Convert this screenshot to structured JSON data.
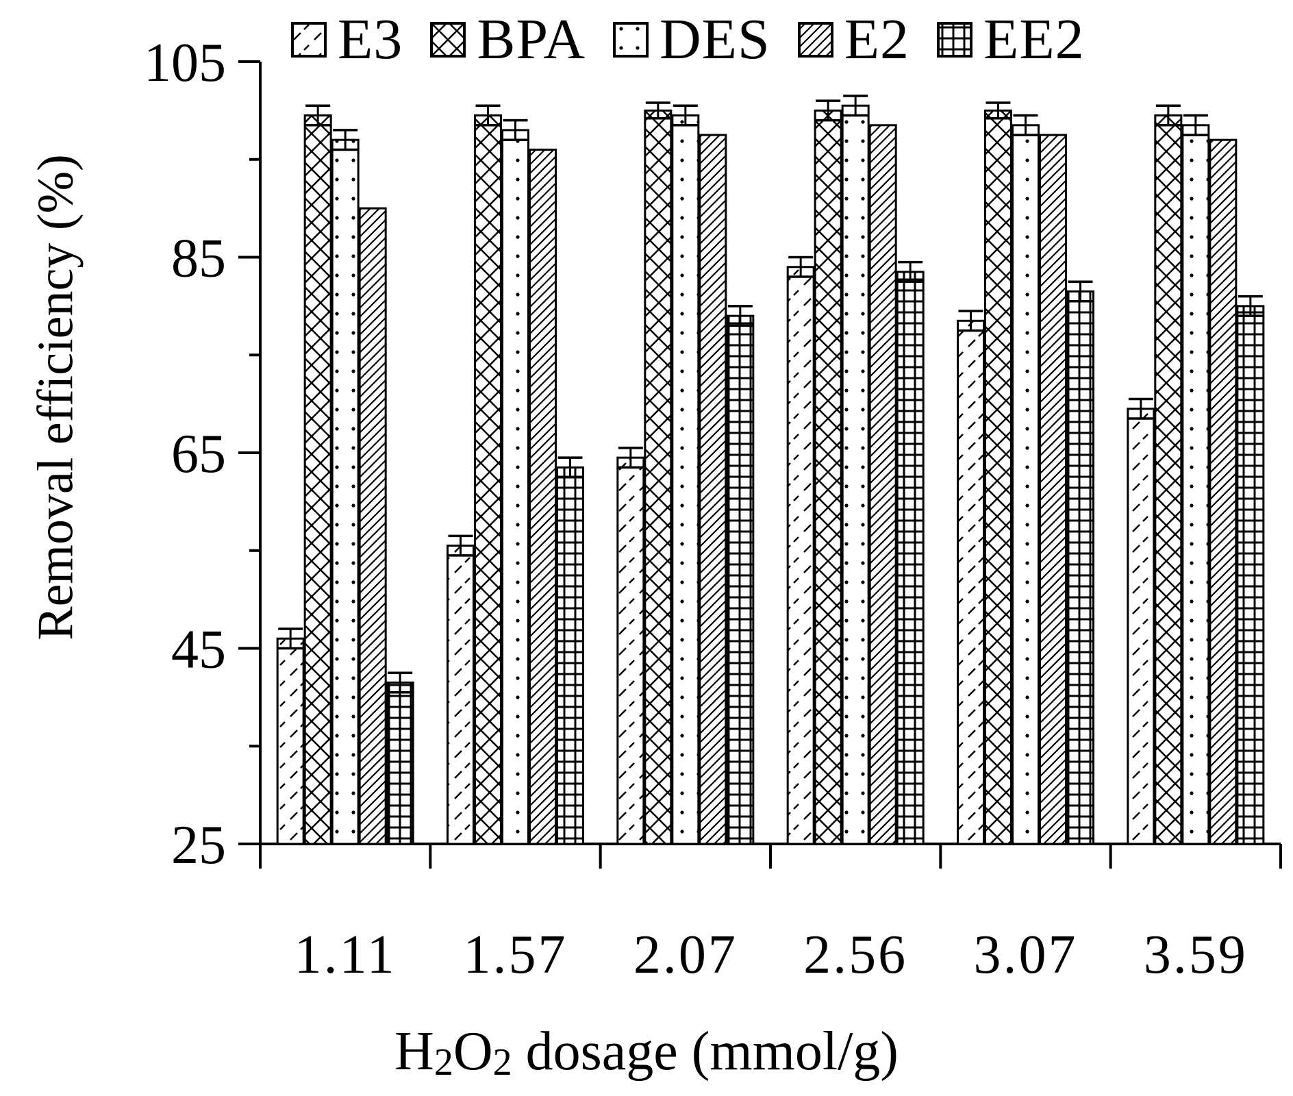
{
  "chart_data": {
    "type": "bar",
    "xlabel_parts": {
      "prefix": "H",
      "sub1": "2",
      "mid": "O",
      "sub2": "2",
      "suffix": " dosage (mmol/g)"
    },
    "ylabel": "Removal efficiency (%)",
    "ylim": [
      25,
      105
    ],
    "yticks": [
      "25",
      "45",
      "65",
      "85",
      "105"
    ],
    "categories": [
      "1.11",
      "1.57",
      "2.07",
      "2.56",
      "3.07",
      "3.59"
    ],
    "series": [
      {
        "name": "E3",
        "pattern": "slash-dash",
        "values": [
          46,
          55.5,
          64.5,
          84,
          78.5,
          69.5
        ],
        "errors": [
          1,
          1,
          1,
          1,
          1,
          1
        ]
      },
      {
        "name": "BPA",
        "pattern": "crosshatch",
        "values": [
          99.5,
          99.5,
          100,
          100,
          100,
          99.5
        ],
        "errors": [
          1,
          1,
          0.8,
          1,
          0.8,
          1
        ]
      },
      {
        "name": "DES",
        "pattern": "dots",
        "values": [
          97,
          98,
          99.5,
          100.5,
          98.5,
          98.5
        ],
        "errors": [
          1,
          1,
          1,
          1,
          1,
          1
        ]
      },
      {
        "name": "E2",
        "pattern": "diagonal",
        "values": [
          90,
          96,
          97.5,
          98.5,
          97.5,
          97
        ],
        "errors": [
          0,
          0,
          0,
          0,
          0,
          0
        ]
      },
      {
        "name": "EE2",
        "pattern": "grid",
        "values": [
          41.5,
          63.5,
          79,
          83.5,
          81.5,
          80
        ],
        "errors": [
          1,
          1,
          1,
          1,
          1,
          1
        ]
      }
    ]
  }
}
